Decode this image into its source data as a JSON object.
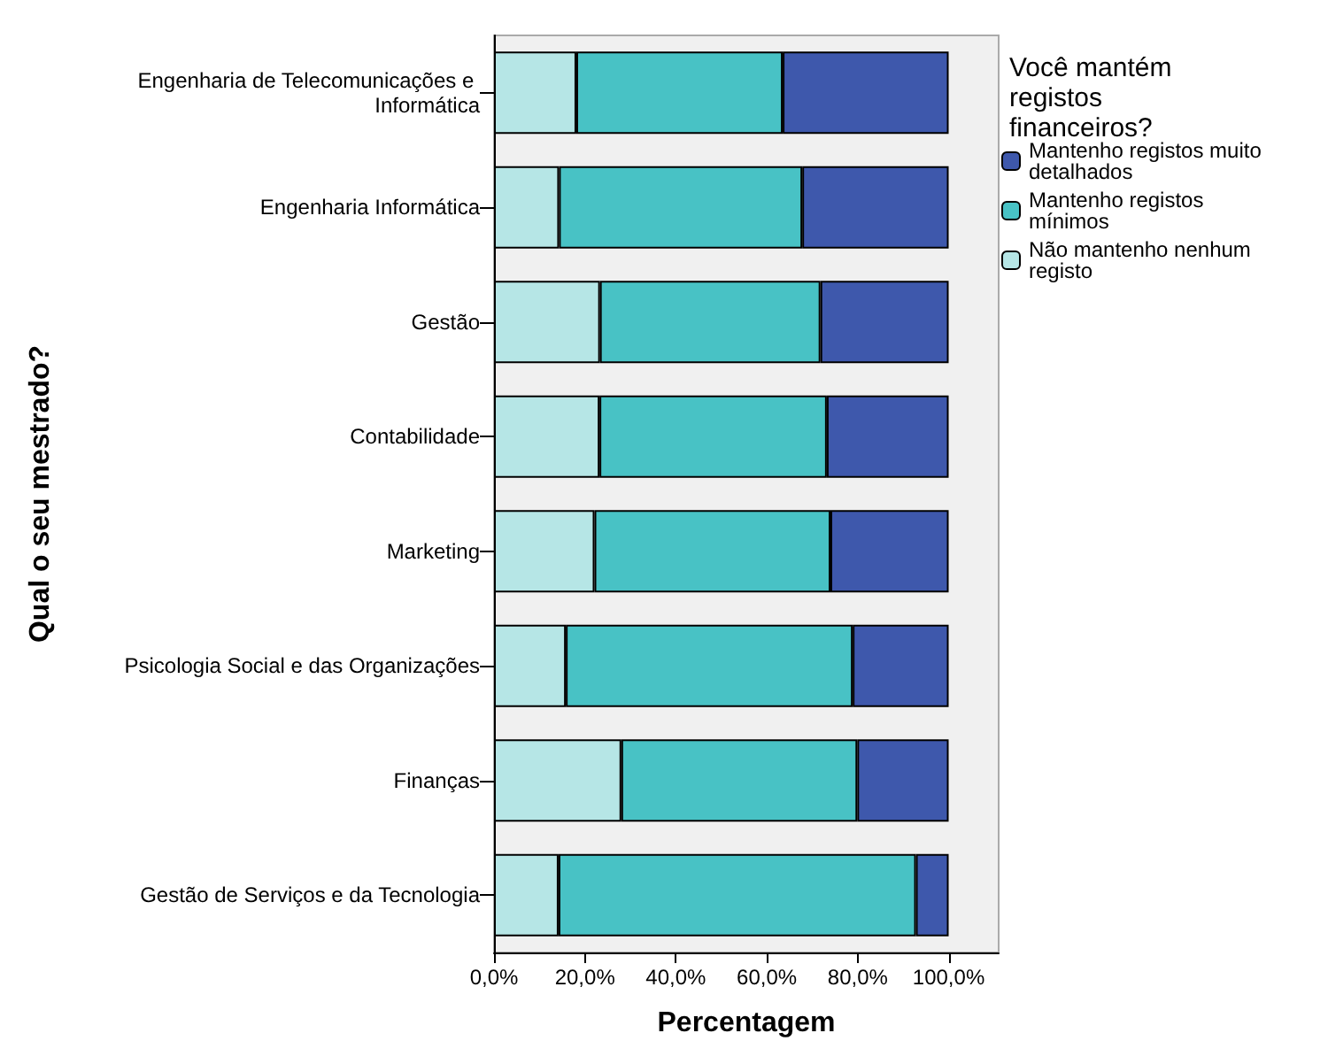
{
  "chart_data": {
    "type": "bar",
    "orientation": "horizontal",
    "stacked": true,
    "xlabel": "Percentagem",
    "ylabel": "Qual o seu mestrado?",
    "legend_title": "Você mantém registos financeiros?",
    "legend": "right",
    "grid": false,
    "categories": [
      "Engenharia de Telecomunicações e Informática",
      "Engenharia Informática",
      "Gestão",
      "Contabilidade",
      "Marketing",
      "Psicologia Social e das Organizações",
      "Finanças",
      "Gestão de Serviços e da Tecnologia"
    ],
    "series": [
      {
        "name": "Não mantenho nenhum registo",
        "color": "#b6e6e6",
        "values": [
          18.1,
          14.3,
          23.3,
          23.2,
          22.1,
          15.8,
          28.0,
          14.2
        ]
      },
      {
        "name": "Mantenho registos mínimos",
        "color": "#48c2c5",
        "values": [
          45.4,
          53.5,
          48.5,
          50.0,
          51.9,
          63.1,
          51.9,
          78.6
        ]
      },
      {
        "name": "Mantenho registos muito detalhados",
        "color": "#3e58ac",
        "values": [
          36.5,
          32.2,
          28.2,
          26.8,
          26.0,
          21.1,
          20.1,
          7.2
        ]
      }
    ],
    "xlim": [
      0,
      111
    ],
    "xticks": [
      {
        "value": 0,
        "label": "0,0%"
      },
      {
        "value": 20,
        "label": "20,0%"
      },
      {
        "value": 40,
        "label": "40,0%"
      },
      {
        "value": 60,
        "label": "60,0%"
      },
      {
        "value": 80,
        "label": "80,0%"
      },
      {
        "value": 100,
        "label": "100,0%"
      }
    ]
  }
}
